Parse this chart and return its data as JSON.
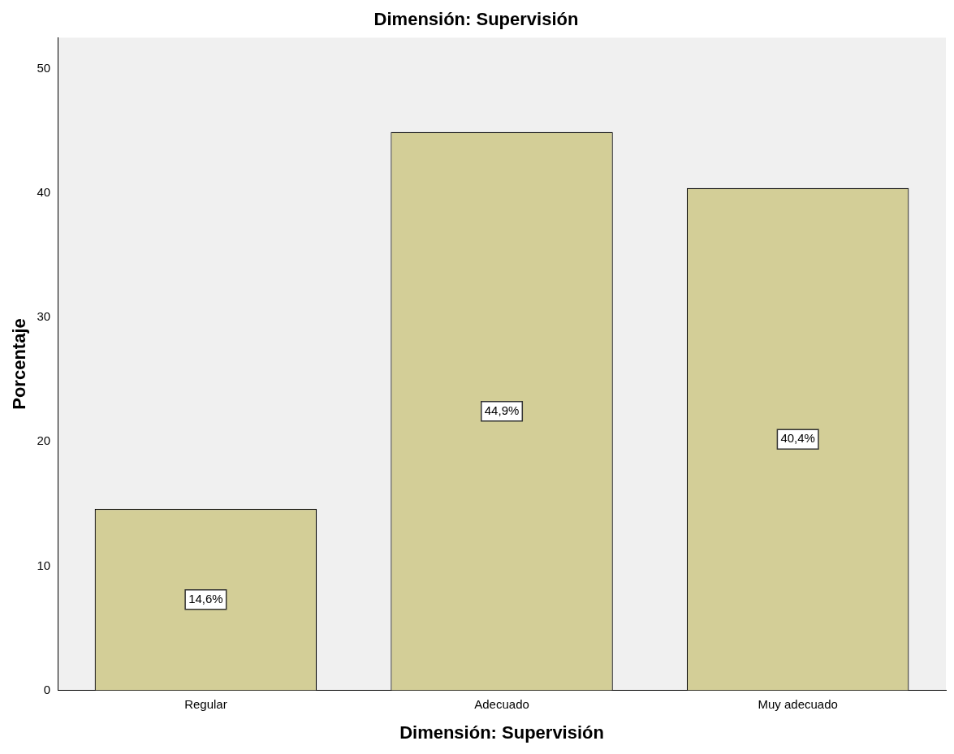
{
  "chart_data": {
    "type": "bar",
    "title": "Dimensión: Supervisión",
    "xlabel": "Dimensión: Supervisión",
    "ylabel": "Porcentaje",
    "categories": [
      "Regular",
      "Adecuado",
      "Muy adecuado"
    ],
    "values": [
      14.6,
      44.9,
      40.4
    ],
    "value_labels": [
      "14,6%",
      "44,9%",
      "40,4%"
    ],
    "color": "#d3ce97",
    "ylim": [
      0,
      52.5
    ],
    "yticks": [
      0,
      10,
      20,
      30,
      40,
      50
    ],
    "grid": false,
    "legend": false
  }
}
